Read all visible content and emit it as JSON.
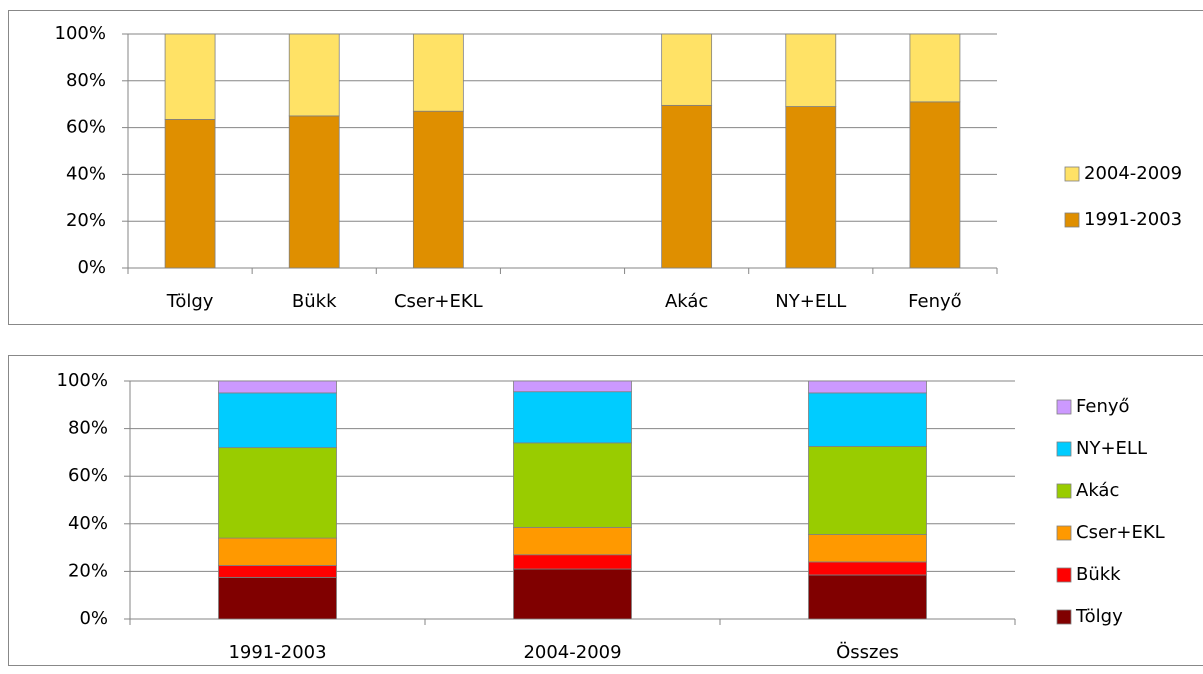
{
  "chart_data": [
    {
      "type": "bar",
      "stacked": true,
      "categories": [
        "Tölgy",
        "Bükk",
        "Cser+EKL",
        null,
        "Akác",
        "NY+ELL",
        "Fenyő"
      ],
      "series": [
        {
          "name": "1991-2003",
          "color": "#df8f00",
          "values": [
            63.5,
            65,
            67,
            null,
            69.5,
            69,
            71
          ]
        },
        {
          "name": "2004-2009",
          "color": "#ffe266",
          "values": [
            36.5,
            35,
            33,
            null,
            30.5,
            31,
            29
          ]
        }
      ],
      "ylim": [
        0,
        100
      ],
      "yticks": [
        {
          "value": 0,
          "label": "0%"
        },
        {
          "value": 20,
          "label": "20%"
        },
        {
          "value": 40,
          "label": "40%"
        },
        {
          "value": 60,
          "label": "60%"
        },
        {
          "value": 80,
          "label": "80%"
        },
        {
          "value": 100,
          "label": "100%"
        }
      ],
      "grid": true,
      "legend": "right"
    },
    {
      "type": "bar",
      "stacked": true,
      "categories": [
        "1991-2003",
        "2004-2009",
        "Összes"
      ],
      "series": [
        {
          "name": "Tölgy",
          "color": "#800000",
          "values": [
            17.5,
            21,
            18.5
          ]
        },
        {
          "name": "Bükk",
          "color": "#ff0000",
          "values": [
            5,
            6,
            5.5
          ]
        },
        {
          "name": "Cser+EKL",
          "color": "#ff9900",
          "values": [
            11.5,
            11.5,
            11.5
          ]
        },
        {
          "name": "Akác",
          "color": "#99cc00",
          "values": [
            38,
            35.5,
            37
          ]
        },
        {
          "name": "NY+ELL",
          "color": "#00ccff",
          "values": [
            23,
            21.5,
            22.5
          ]
        },
        {
          "name": "Fenyő",
          "color": "#cc99ff",
          "values": [
            5,
            4.5,
            5
          ]
        }
      ],
      "ylim": [
        0,
        100
      ],
      "yticks": [
        {
          "value": 0,
          "label": "0%"
        },
        {
          "value": 20,
          "label": "20%"
        },
        {
          "value": 40,
          "label": "40%"
        },
        {
          "value": 60,
          "label": "60%"
        },
        {
          "value": 80,
          "label": "80%"
        },
        {
          "value": 100,
          "label": "100%"
        }
      ],
      "grid": true,
      "legend": "right"
    }
  ]
}
